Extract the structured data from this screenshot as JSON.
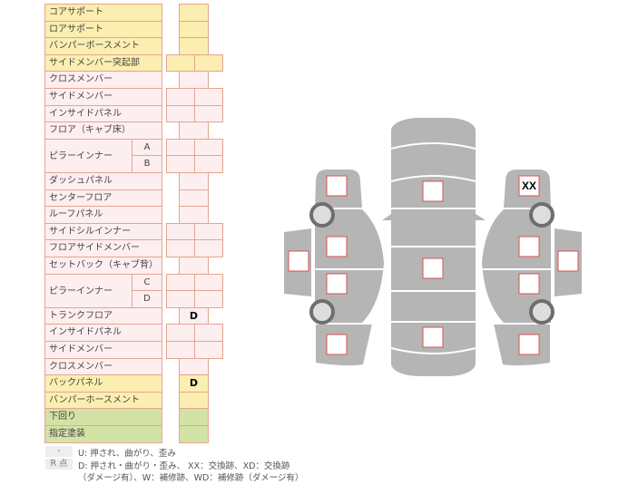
{
  "rows": [
    {
      "label": "コアサポート",
      "color": "y",
      "cells": 1,
      "values": [
        ""
      ]
    },
    {
      "label": "ロアサポート",
      "color": "y",
      "cells": 1,
      "values": [
        ""
      ]
    },
    {
      "label": "バンパーボースメント",
      "color": "y",
      "cells": 1,
      "values": [
        ""
      ]
    },
    {
      "label": "サイドメンバー突起部",
      "color": "y",
      "cells": 2,
      "values": [
        "",
        ""
      ]
    },
    {
      "label": "クロスメンバー",
      "color": "p",
      "cells": 1,
      "values": [
        ""
      ]
    },
    {
      "label": "サイドメンバー",
      "color": "p",
      "cells": 2,
      "values": [
        "",
        ""
      ]
    },
    {
      "label": "インサイドパネル",
      "color": "p",
      "cells": 2,
      "values": [
        "",
        ""
      ]
    },
    {
      "label": "フロア（キャブ床）",
      "color": "p",
      "cells": 1,
      "values": [
        ""
      ]
    },
    {
      "label": "ピラーインナー",
      "sub": "A",
      "color": "p",
      "cells": 2,
      "values": [
        "",
        ""
      ]
    },
    {
      "label": "",
      "sub": "B",
      "color": "p",
      "cells": 2,
      "values": [
        "",
        ""
      ]
    },
    {
      "label": "ダッシュパネル",
      "color": "p",
      "cells": 1,
      "values": [
        ""
      ]
    },
    {
      "label": "センターフロア",
      "color": "p",
      "cells": 1,
      "values": [
        ""
      ]
    },
    {
      "label": "ルーフパネル",
      "color": "p",
      "cells": 1,
      "values": [
        ""
      ]
    },
    {
      "label": "サイドシルインナー",
      "color": "p",
      "cells": 2,
      "values": [
        "",
        ""
      ]
    },
    {
      "label": "フロアサイドメンバー",
      "color": "p",
      "cells": 2,
      "values": [
        "",
        ""
      ]
    },
    {
      "label": "セットバック（キャブ背）",
      "color": "p",
      "cells": 1,
      "values": [
        ""
      ]
    },
    {
      "label": "ピラーインナー",
      "sub": "C",
      "color": "p",
      "cells": 2,
      "values": [
        "",
        ""
      ]
    },
    {
      "label": "",
      "sub": "D",
      "color": "p",
      "cells": 2,
      "values": [
        "",
        ""
      ]
    },
    {
      "label": "トランクフロア",
      "color": "p",
      "cells": 1,
      "values": [
        "D"
      ]
    },
    {
      "label": "インサイドパネル",
      "color": "p",
      "cells": 2,
      "values": [
        "",
        ""
      ]
    },
    {
      "label": "サイドメンバー",
      "color": "p",
      "cells": 2,
      "values": [
        "",
        ""
      ]
    },
    {
      "label": "クロスメンバー",
      "color": "p",
      "cells": 1,
      "values": [
        ""
      ]
    },
    {
      "label": "バックパネル",
      "color": "y",
      "cells": 1,
      "values": [
        "D"
      ]
    },
    {
      "label": "バンパーホースメント",
      "color": "y",
      "cells": 1,
      "values": [
        ""
      ]
    },
    {
      "label": "下回り",
      "color": "g",
      "cells": 1,
      "values": [
        ""
      ]
    },
    {
      "label": "指定塗装",
      "color": "g",
      "cells": 1,
      "values": [
        ""
      ]
    }
  ],
  "legend": {
    "key1": "-",
    "text1": "U: 押され、曲がり、歪み",
    "key2": "R 点",
    "text2": "D: 押され・曲がり・歪み、 XX：交換跡、XD：交換跡",
    "text3": "（ダメージ有）、W：補修跡、WD：補修跡（ダメージ有）"
  },
  "diagram": {
    "marks": [
      "",
      "",
      "",
      "",
      "",
      "",
      "",
      "",
      "XX",
      "",
      "",
      "",
      ""
    ]
  }
}
